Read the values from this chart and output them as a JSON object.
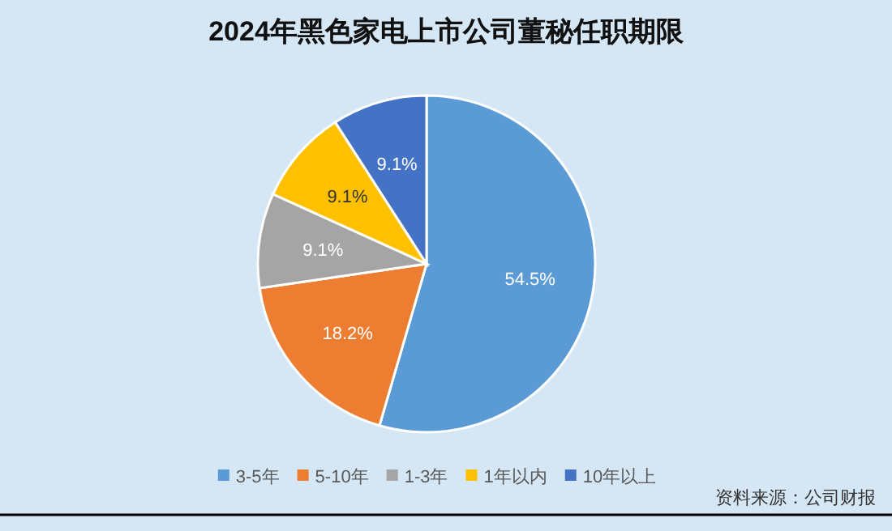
{
  "chart_data": {
    "type": "pie",
    "title": "2024年黑色家电上市公司董秘任职期限",
    "categories": [
      "3-5年",
      "5-10年",
      "1-3年",
      "1年以内",
      "10年以上"
    ],
    "values": [
      54.5,
      18.2,
      9.1,
      9.1,
      9.1
    ],
    "colors": [
      "#5b9bd5",
      "#ed7d31",
      "#a5a5a5",
      "#ffc000",
      "#4472c4"
    ],
    "value_labels": [
      "54.5%",
      "18.2%",
      "9.1%",
      "9.1%",
      "9.1%"
    ],
    "legend": "bottom",
    "annotations": [
      "资料来源：公司财报"
    ]
  }
}
